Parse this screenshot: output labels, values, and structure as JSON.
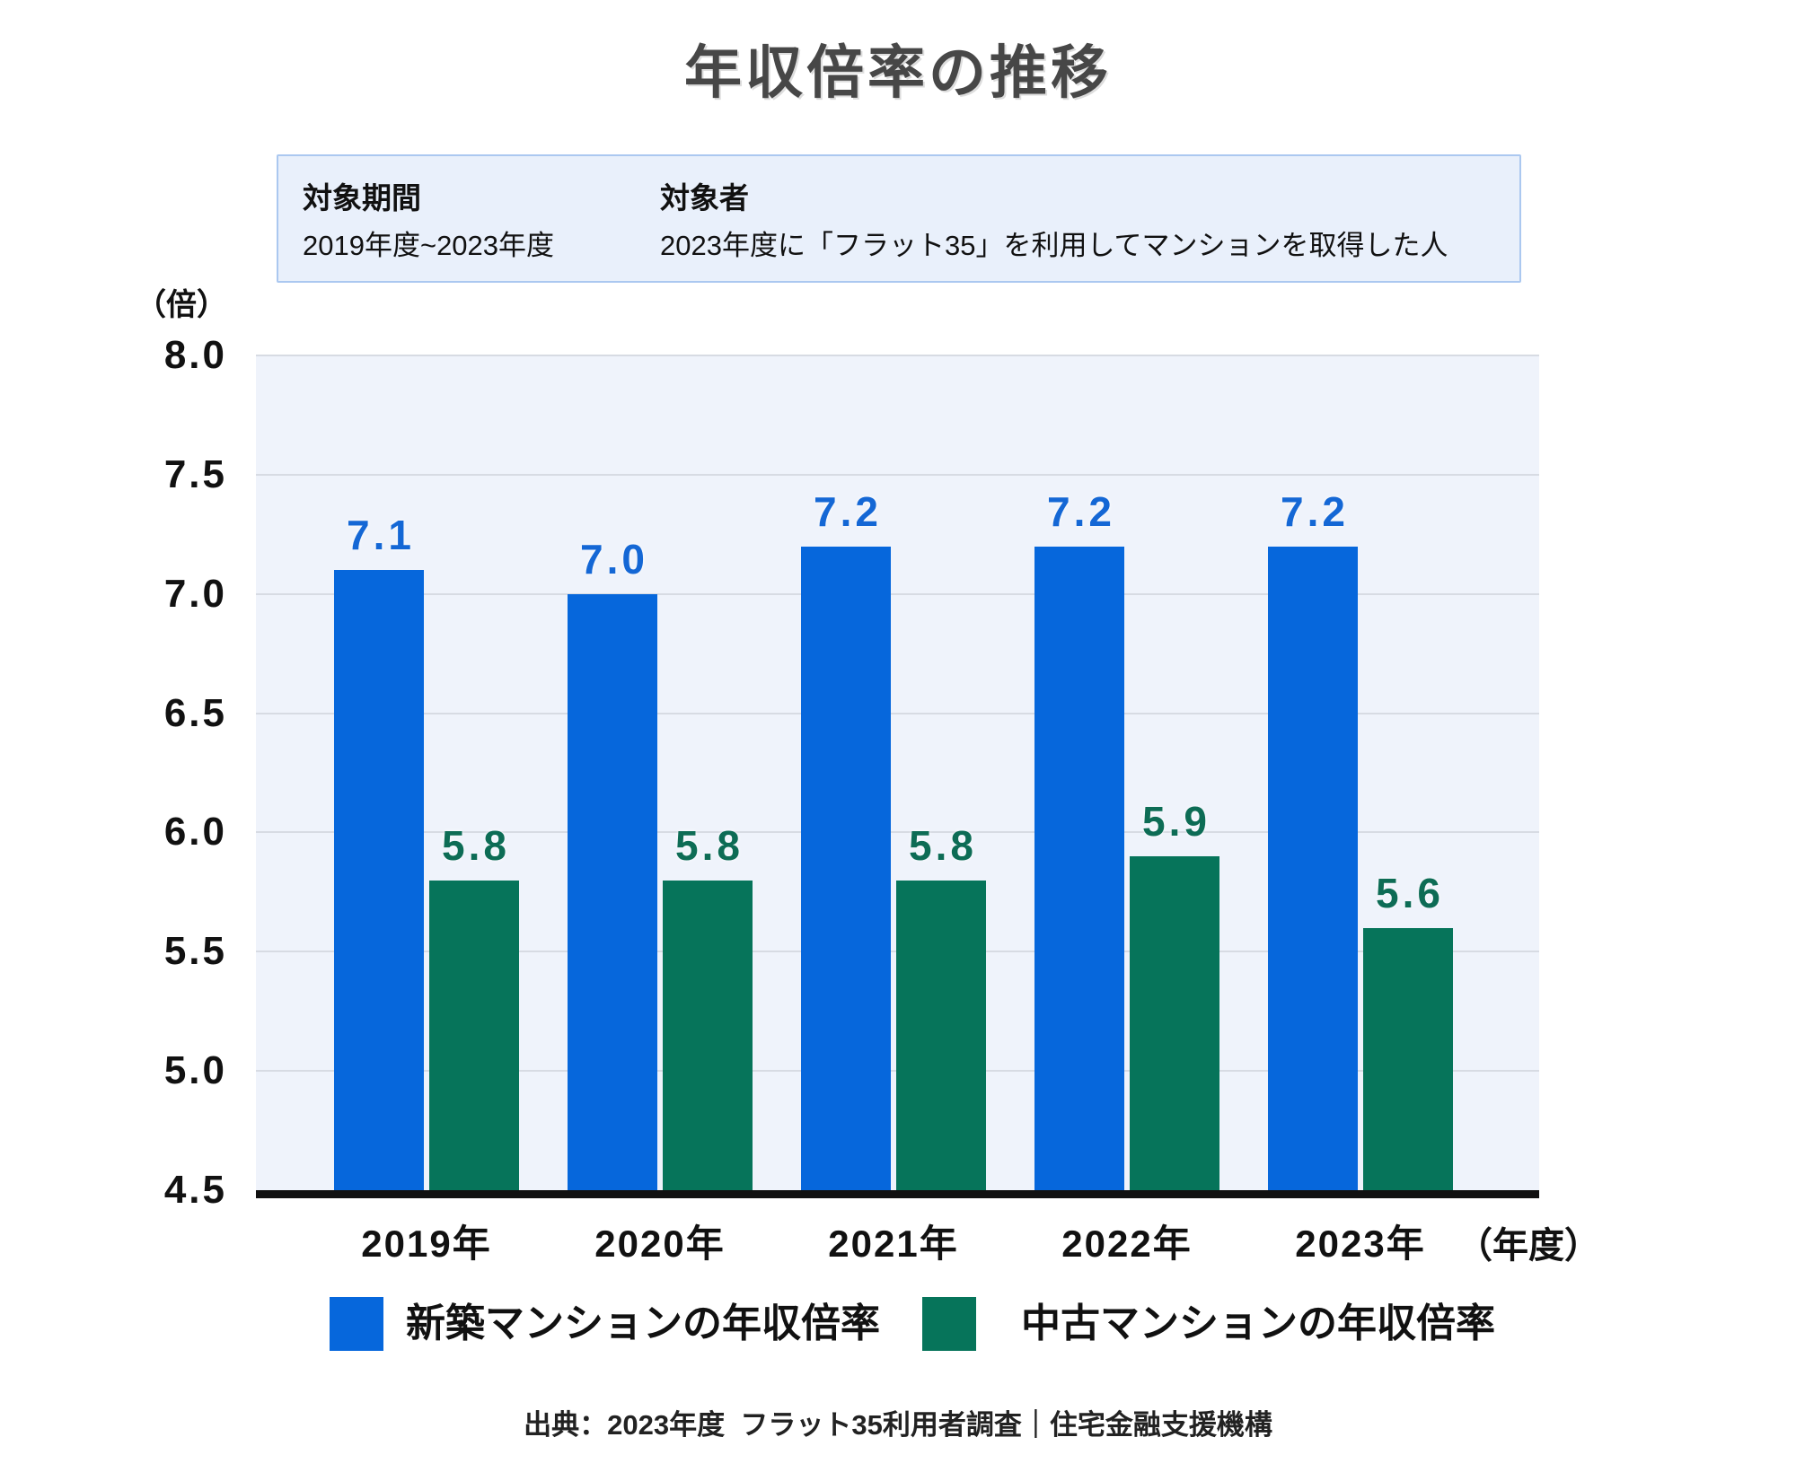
{
  "title": "年収倍率の推移",
  "info_box": {
    "period_label": "対象期間",
    "period_value": "2019年度~2023年度",
    "subject_label": "対象者",
    "subject_value": "2023年度に「フラット35」を利用してマンションを取得した人"
  },
  "chart_data": {
    "type": "bar",
    "title": "年収倍率の推移",
    "y_unit": "（倍）",
    "x_unit": "（年度）",
    "categories": [
      "2019年",
      "2020年",
      "2021年",
      "2022年",
      "2023年"
    ],
    "series": [
      {
        "name": "新築マンションの年収倍率",
        "values": [
          7.1,
          7.0,
          7.2,
          7.2,
          7.2
        ],
        "color": "#0667dc",
        "label_color": "#1467d5"
      },
      {
        "name": "中古マンションの年収倍率",
        "values": [
          5.8,
          5.8,
          5.8,
          5.9,
          5.6
        ],
        "color": "#06745a",
        "label_color": "#0d6c55"
      }
    ],
    "ylim": [
      4.5,
      8.0
    ],
    "yticks": [
      8.0,
      7.5,
      7.0,
      6.5,
      6.0,
      5.5,
      5.0,
      4.5
    ],
    "grid": true,
    "legend_position": "bottom"
  },
  "source": "出典：2023年度  フラット35利用者調査｜住宅金融支援機構",
  "colors": {
    "plot_bg": "#eff3fb",
    "gridline": "#d7dbe3",
    "axis_line": "#111111",
    "info_bg": "#e9f0fb",
    "info_border": "#abc8f0",
    "title": "#474747"
  }
}
